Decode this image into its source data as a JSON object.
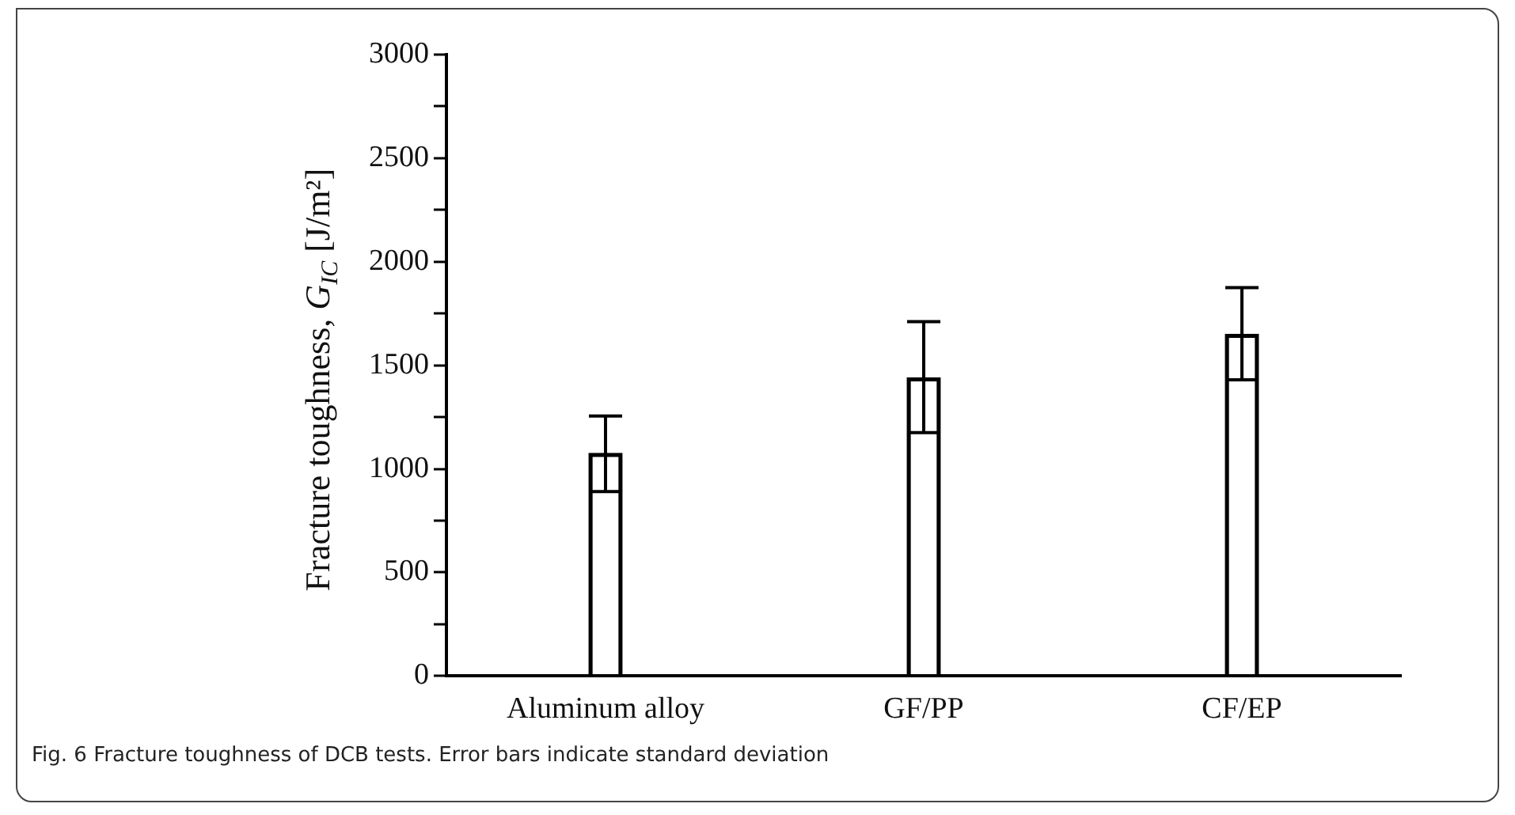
{
  "chart_data": {
    "type": "bar",
    "ylabel": "Fracture toughness, G$_{IC}$  [J/m²]",
    "categories": [
      "Aluminum alloy",
      "GF/PP",
      "CF/EP"
    ],
    "values": [
      1075,
      1440,
      1650
    ],
    "errors": [
      [
        890,
        1255
      ],
      [
        1175,
        1710
      ],
      [
        1430,
        1875
      ]
    ],
    "color": "#000000",
    "ylim": [
      0,
      3000
    ],
    "yticks": [
      0,
      {
        "value": 250,
        "label": null
      },
      500,
      {
        "value": 750,
        "label": null
      },
      1000,
      {
        "value": 1250,
        "label": null
      },
      1500,
      {
        "value": 1750,
        "label": null
      },
      2000,
      {
        "value": 2250,
        "label": null
      },
      2500,
      {
        "value": 2750,
        "label": null
      },
      3000
    ],
    "grid": false,
    "legend": false,
    "annotations": [
      "Fig. 6  Fracture toughness of DCB tests. Error bars indicate standard deviation"
    ]
  }
}
